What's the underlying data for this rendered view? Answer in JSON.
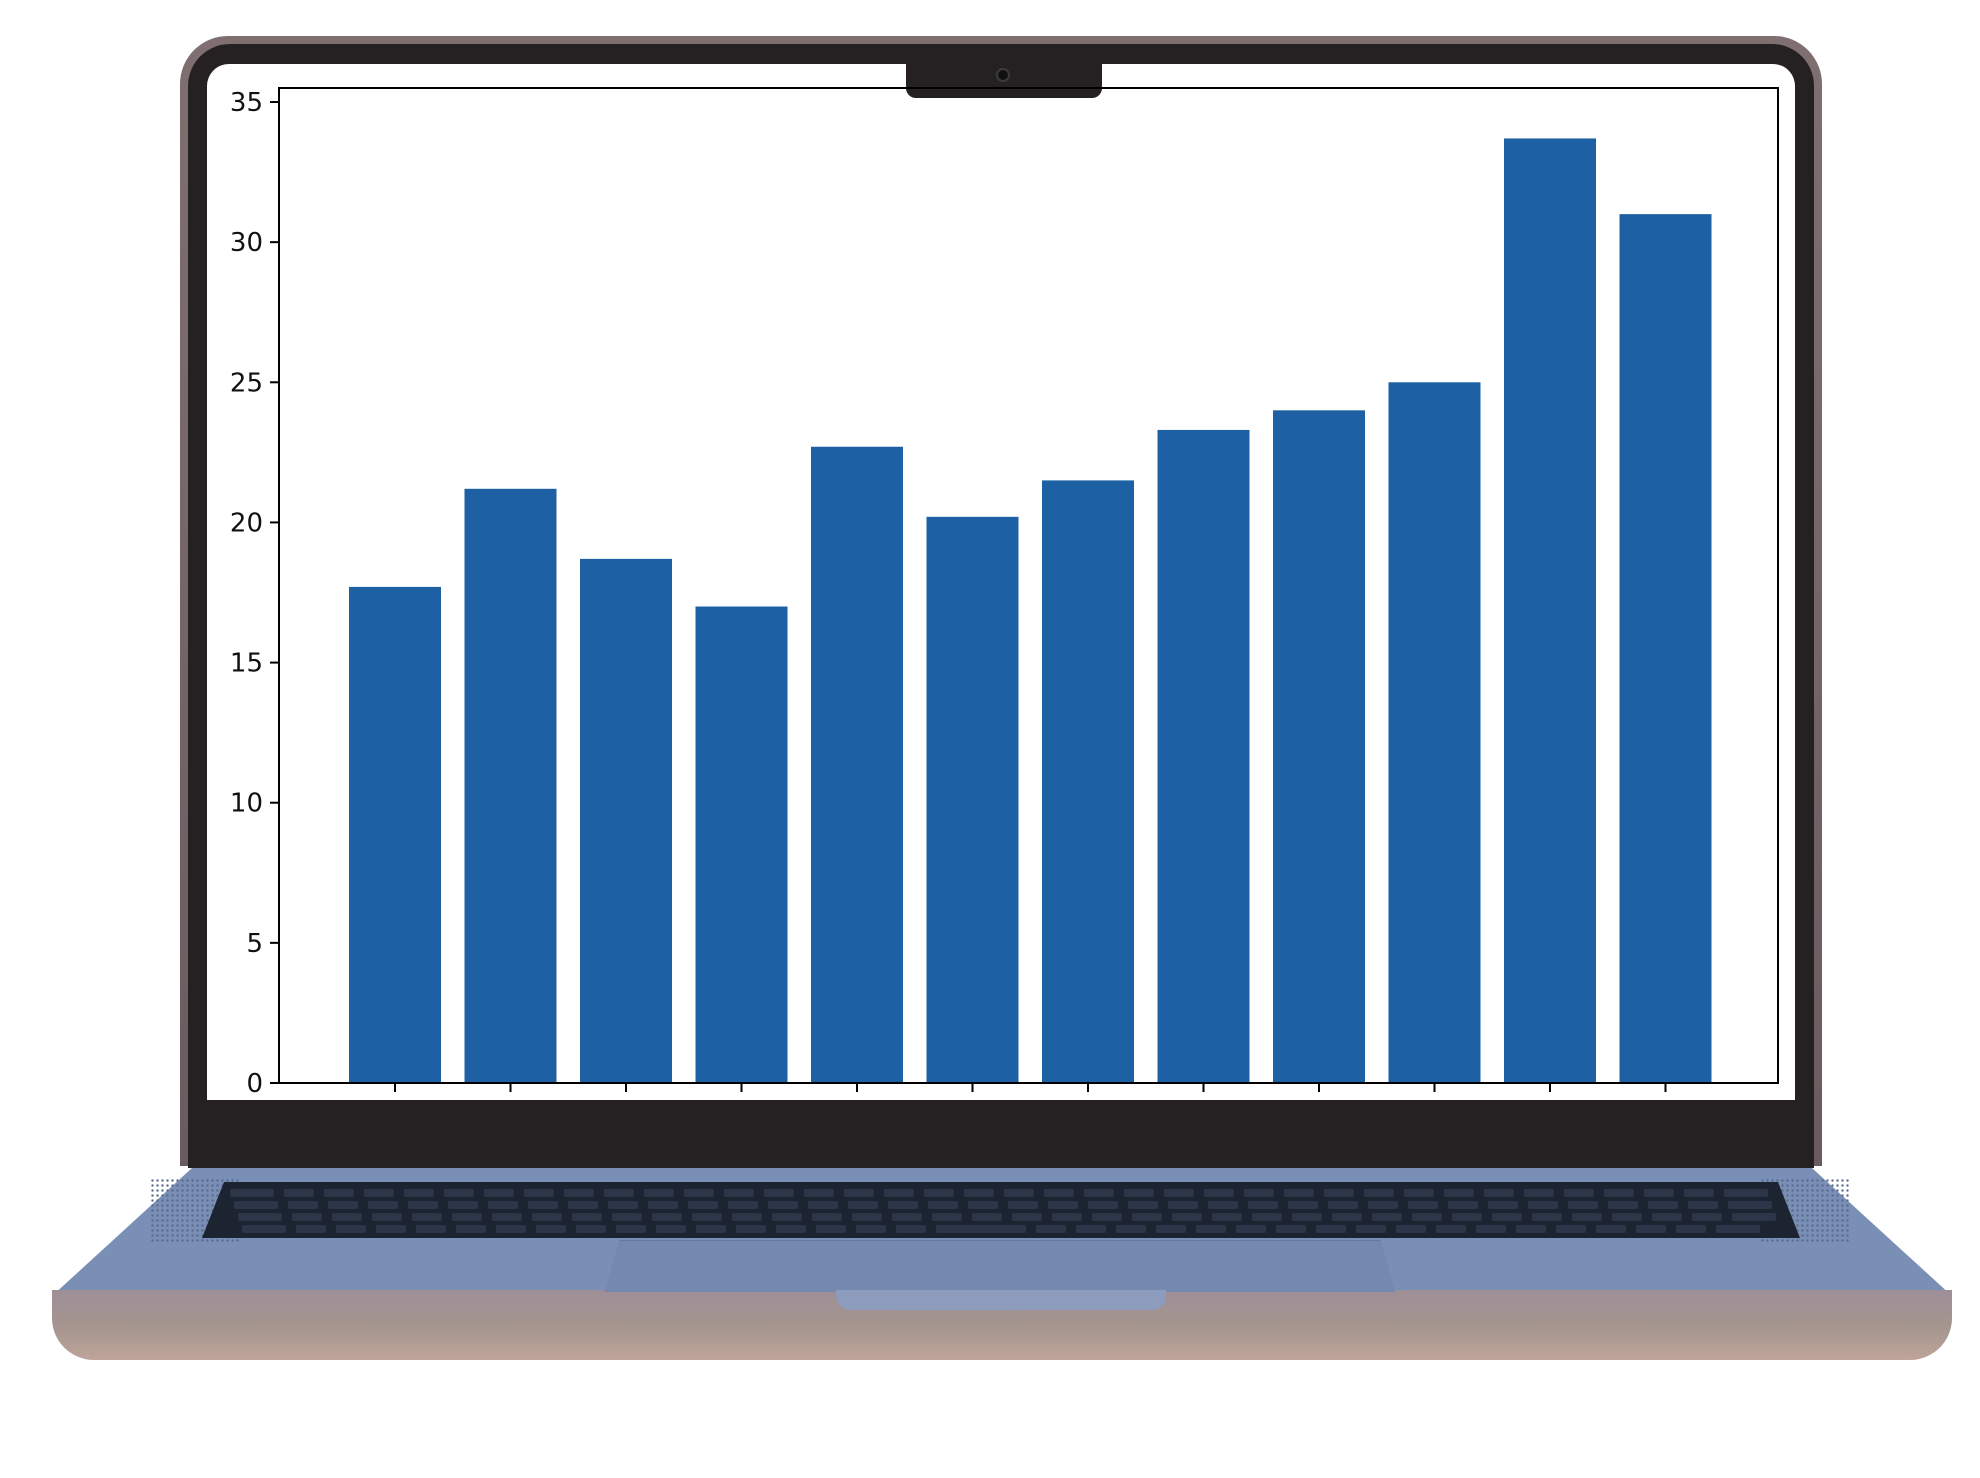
{
  "colors": {
    "bar": "#1d61a4",
    "axis": "#000000",
    "bezel": "#252122",
    "chassis": "#7a8fb5"
  },
  "chart_data": {
    "type": "bar",
    "title": "",
    "xlabel": "",
    "ylabel": "",
    "categories": [
      "",
      "",
      "",
      "",
      "",
      "",
      "",
      "",
      "",
      "",
      "",
      ""
    ],
    "values": [
      17.7,
      21.2,
      18.7,
      17.0,
      22.7,
      20.2,
      21.5,
      23.3,
      24.0,
      25.0,
      33.7,
      31.0
    ],
    "ylim": [
      0,
      35.5
    ],
    "yticks": [
      "0",
      "5",
      "10",
      "15",
      "20",
      "25",
      "30",
      "35"
    ],
    "grid": false,
    "legend": "none"
  }
}
